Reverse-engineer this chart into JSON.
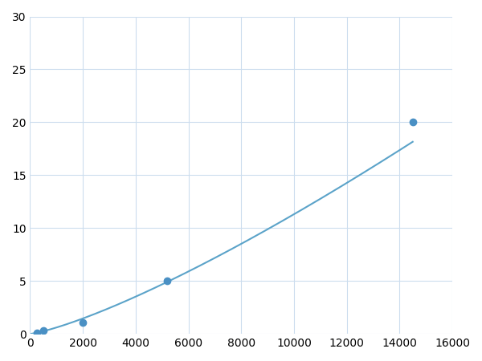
{
  "x_points": [
    250,
    500,
    2000,
    5200,
    14500
  ],
  "y_points": [
    0.1,
    0.3,
    1.1,
    5.0,
    20.0
  ],
  "line_color": "#5BA3C9",
  "marker_color": "#4A90C4",
  "marker_size": 6,
  "line_width": 1.5,
  "xlim": [
    0,
    16000
  ],
  "ylim": [
    0,
    30
  ],
  "xticks": [
    0,
    2000,
    4000,
    6000,
    8000,
    10000,
    12000,
    14000,
    16000
  ],
  "yticks": [
    0,
    5,
    10,
    15,
    20,
    25,
    30
  ],
  "grid_color": "#CCDDEE",
  "background_color": "#FFFFFF",
  "figsize": [
    6.0,
    4.5
  ],
  "dpi": 100
}
